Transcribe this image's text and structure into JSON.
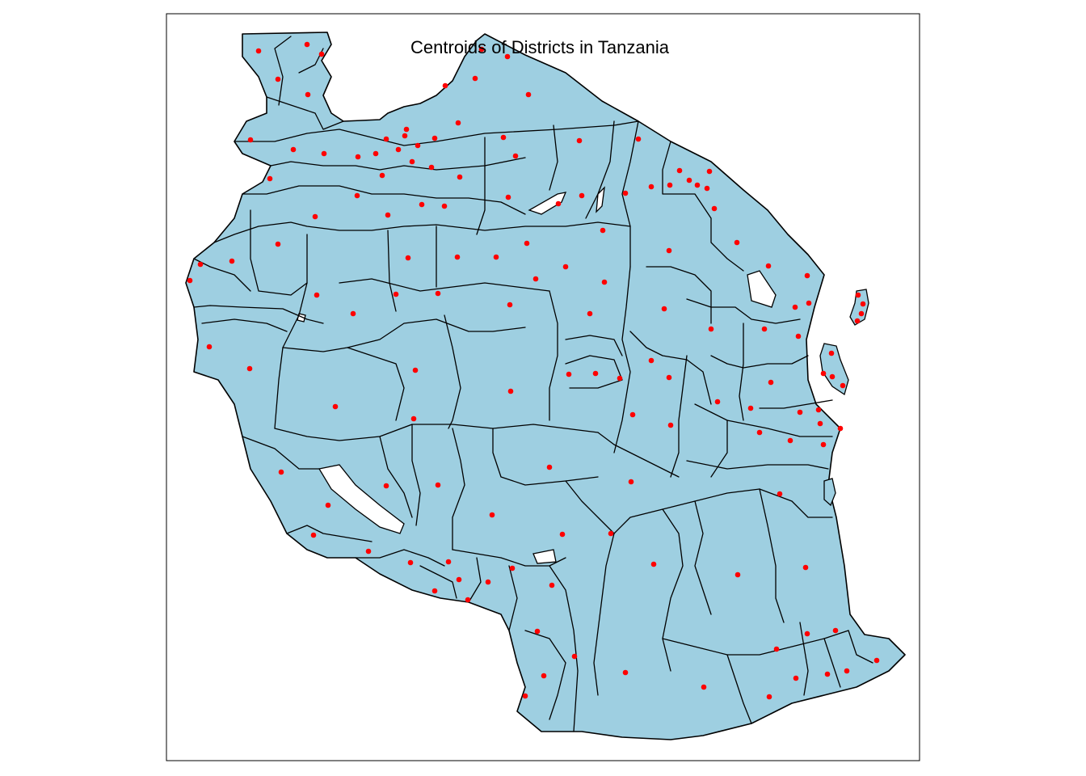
{
  "title": "Centroids of Districts in Tanzania",
  "colors": {
    "land": "#9ecfe1",
    "border": "#000000",
    "centroid": "#ff0000",
    "water": "#ffffff"
  },
  "centroid_count": 165
}
